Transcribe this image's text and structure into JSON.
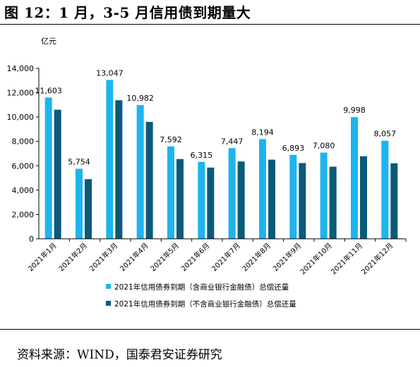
{
  "header": {
    "title": "图 12：1 月，3-5 月信用债到期量大"
  },
  "footer": {
    "source": "资料来源：WIND，国泰君安证券研究"
  },
  "chart_data": {
    "type": "bar",
    "unit_label": "亿元",
    "categories": [
      "2021年1月",
      "2021年2月",
      "2021年3月",
      "2021年4月",
      "2021年5月",
      "2021年6月",
      "2021年7月",
      "2021年8月",
      "2021年9月",
      "2021年10月",
      "2021年11月",
      "2021年12月"
    ],
    "series": [
      {
        "name": "2021年信用债券到期（含商业银行金融债）总偿还量",
        "color": "#1eb4ee",
        "values": [
          11603,
          5754,
          13047,
          10982,
          7592,
          6315,
          7447,
          8194,
          6893,
          7080,
          9998,
          8057
        ],
        "labels": [
          "11,603",
          "5,754",
          "13,047",
          "10,982",
          "7,592",
          "6,315",
          "7,447",
          "8,194",
          "6,893",
          "7,080",
          "9,998",
          "8,057"
        ]
      },
      {
        "name": "2021年信用债券到期（不含商业银行金融债）总偿还量",
        "color": "#0b5a7a",
        "values": [
          10600,
          4900,
          11380,
          9600,
          6550,
          5850,
          6350,
          6500,
          6220,
          5920,
          6780,
          6200
        ]
      }
    ],
    "ylim": [
      0,
      14000
    ],
    "yticks": [
      0,
      2000,
      4000,
      6000,
      8000,
      10000,
      12000,
      14000
    ],
    "ytick_labels": [
      "0",
      "2,000",
      "4,000",
      "6,000",
      "8,000",
      "10,000",
      "12,000",
      "14,000"
    ],
    "grid": false,
    "legend_position": "bottom"
  }
}
